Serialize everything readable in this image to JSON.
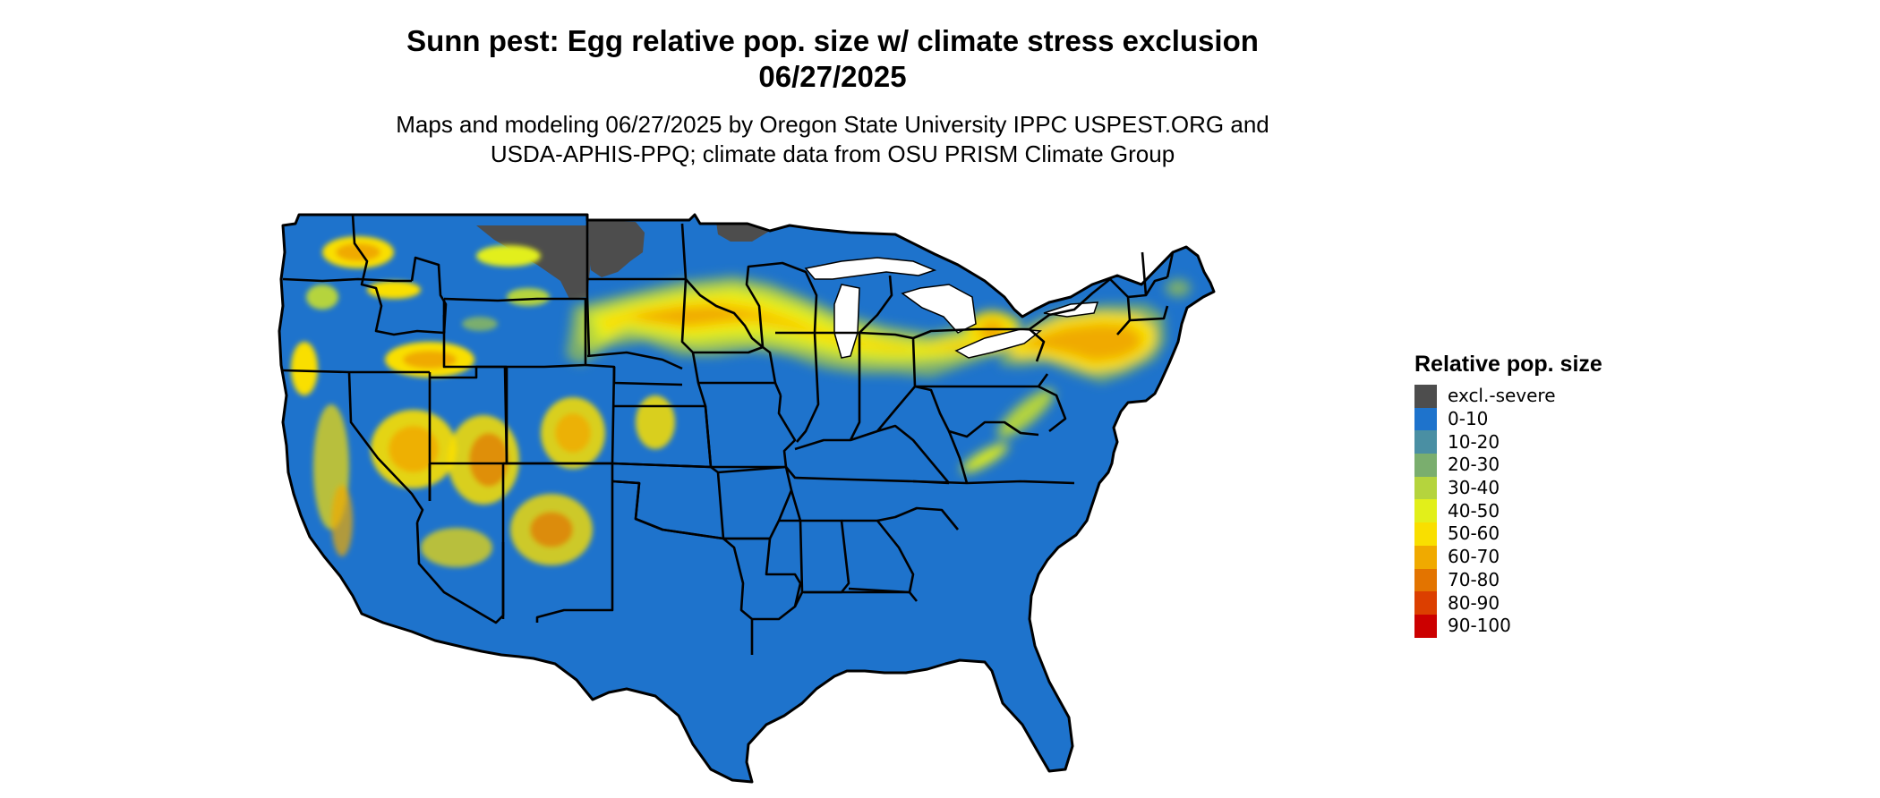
{
  "title": {
    "line1": "Sunn pest: Egg relative pop. size w/ climate stress exclusion",
    "line2": "06/27/2025"
  },
  "subtitle": {
    "line1": "Maps and modeling 06/27/2025 by Oregon State University IPPC USPEST.ORG and",
    "line2": "USDA-APHIS-PPQ; climate data from OSU PRISM Climate Group"
  },
  "legend": {
    "title": "Relative pop. size",
    "items": [
      {
        "label": "excl.-severe",
        "color": "#4d4d4d"
      },
      {
        "label": "0-10",
        "color": "#1e73cc"
      },
      {
        "label": "10-20",
        "color": "#4a8fa3"
      },
      {
        "label": "20-30",
        "color": "#7aae6e"
      },
      {
        "label": "30-40",
        "color": "#b5d43d"
      },
      {
        "label": "40-50",
        "color": "#e2ef1a"
      },
      {
        "label": "50-60",
        "color": "#f9df00"
      },
      {
        "label": "60-70",
        "color": "#f0aa00"
      },
      {
        "label": "70-80",
        "color": "#e37400"
      },
      {
        "label": "80-90",
        "color": "#dc3f00"
      },
      {
        "label": "90-100",
        "color": "#cc0000"
      }
    ]
  },
  "map": {
    "base_color": "#1e73cc",
    "border_color": "#000000"
  }
}
